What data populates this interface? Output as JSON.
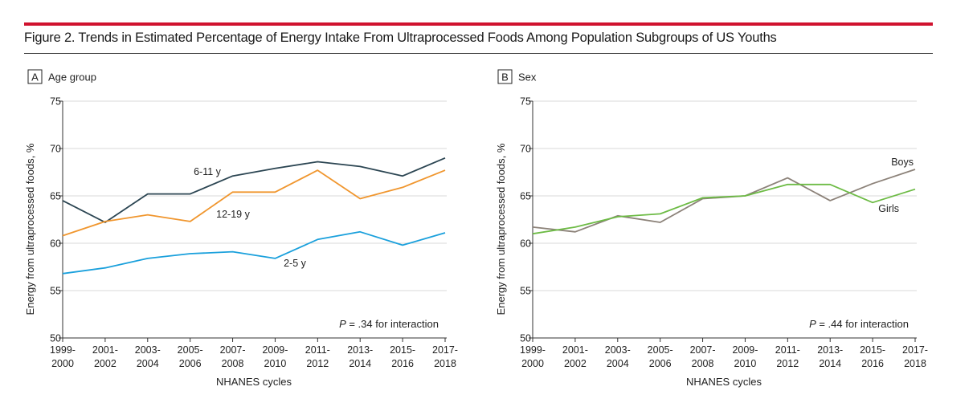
{
  "figure": {
    "title": "Figure 2. Trends in Estimated Percentage of Energy Intake From Ultraprocessed Foods Among Population Subgroups of US Youths",
    "accent_color": "#d0122e"
  },
  "chart_data": [
    {
      "type": "line",
      "panel_letter": "A",
      "panel_title": "Age group",
      "xlabel": "NHANES cycles",
      "ylabel": "Energy from ultraprocessed foods, %",
      "ylim": [
        50,
        75
      ],
      "yticks": [
        50,
        55,
        60,
        65,
        70,
        75
      ],
      "grid": true,
      "categories": [
        [
          "1999-",
          "2000"
        ],
        [
          "2001-",
          "2002"
        ],
        [
          "2003-",
          "2004"
        ],
        [
          "2005-",
          "2006"
        ],
        [
          "2007-",
          "2008"
        ],
        [
          "2009-",
          "2010"
        ],
        [
          "2011-",
          "2012"
        ],
        [
          "2013-",
          "2014"
        ],
        [
          "2015-",
          "2016"
        ],
        [
          "2017-",
          "2018"
        ]
      ],
      "series": [
        {
          "name": "6-11 y",
          "color": "#2b4552",
          "values": [
            64.5,
            62.2,
            65.2,
            65.2,
            67.1,
            67.9,
            68.6,
            68.1,
            67.1,
            69.0
          ]
        },
        {
          "name": "12-19 y",
          "color": "#f0962e",
          "values": [
            60.8,
            62.3,
            63.0,
            62.3,
            65.4,
            65.4,
            67.7,
            64.7,
            65.9,
            67.7
          ]
        },
        {
          "name": "2-5 y",
          "color": "#1aa0dc",
          "values": [
            56.8,
            57.4,
            58.4,
            58.9,
            59.1,
            58.4,
            60.4,
            61.2,
            59.8,
            61.1
          ]
        }
      ],
      "annotation": {
        "prefix": "P",
        "text": " = .34 for interaction"
      }
    },
    {
      "type": "line",
      "panel_letter": "B",
      "panel_title": "Sex",
      "xlabel": "NHANES cycles",
      "ylabel": "Energy from ultraprocessed foods, %",
      "ylim": [
        50,
        75
      ],
      "yticks": [
        50,
        55,
        60,
        65,
        70,
        75
      ],
      "grid": true,
      "categories": [
        [
          "1999-",
          "2000"
        ],
        [
          "2001-",
          "2002"
        ],
        [
          "2003-",
          "2004"
        ],
        [
          "2005-",
          "2006"
        ],
        [
          "2007-",
          "2008"
        ],
        [
          "2009-",
          "2010"
        ],
        [
          "2011-",
          "2012"
        ],
        [
          "2013-",
          "2014"
        ],
        [
          "2015-",
          "2016"
        ],
        [
          "2017-",
          "2018"
        ]
      ],
      "series": [
        {
          "name": "Boys",
          "color": "#8c8279",
          "values": [
            61.7,
            61.2,
            62.9,
            62.2,
            64.7,
            65.0,
            66.9,
            64.5,
            66.3,
            67.8
          ]
        },
        {
          "name": "Girls",
          "color": "#6dbb45",
          "values": [
            61.0,
            61.7,
            62.8,
            63.1,
            64.8,
            65.0,
            66.2,
            66.2,
            64.3,
            65.7
          ]
        }
      ],
      "annotation": {
        "prefix": "P",
        "text": " = .44 for interaction"
      }
    }
  ]
}
